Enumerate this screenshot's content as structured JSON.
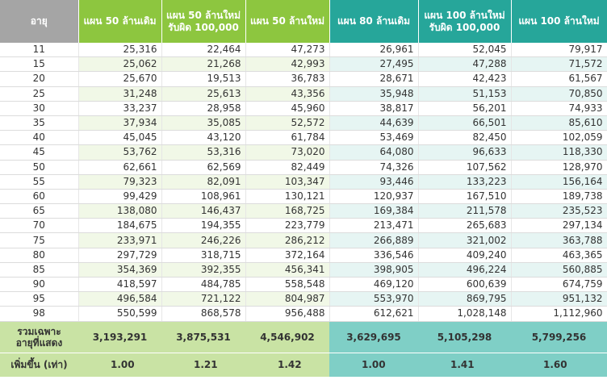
{
  "headers": [
    {
      "lines": [
        "อายุ"
      ]
    },
    {
      "lines": [
        "แผน 50 ล้านเดิม"
      ]
    },
    {
      "lines": [
        "แผน 50 ล้านใหม่",
        "รับผิด 100,000"
      ]
    },
    {
      "lines": [
        "แผน 50 ล้านใหม่"
      ]
    },
    {
      "lines": [
        "แผน 80 ล้านเดิม"
      ]
    },
    {
      "lines": [
        "แผน 100 ล้านใหม่",
        "รับผิด 100,000"
      ]
    },
    {
      "lines": [
        "แผน 100 ล้านใหม่"
      ]
    }
  ],
  "rows": [
    [
      "11",
      "25,316",
      "22,464",
      "47,273",
      "26,961",
      "52,045",
      "79,917"
    ],
    [
      "15",
      "25,062",
      "21,268",
      "42,993",
      "27,495",
      "47,288",
      "71,572"
    ],
    [
      "20",
      "25,670",
      "19,513",
      "36,783",
      "28,671",
      "42,423",
      "61,567"
    ],
    [
      "25",
      "31,248",
      "25,613",
      "43,356",
      "35,948",
      "51,153",
      "70,850"
    ],
    [
      "30",
      "33,237",
      "28,958",
      "45,960",
      "38,817",
      "56,201",
      "74,933"
    ],
    [
      "35",
      "37,934",
      "35,085",
      "52,572",
      "44,639",
      "66,501",
      "85,610"
    ],
    [
      "40",
      "45,045",
      "43,120",
      "61,784",
      "53,469",
      "82,450",
      "102,059"
    ],
    [
      "45",
      "53,762",
      "53,316",
      "73,020",
      "64,080",
      "96,633",
      "118,330"
    ],
    [
      "50",
      "62,661",
      "62,569",
      "82,449",
      "74,326",
      "107,562",
      "128,970"
    ],
    [
      "55",
      "79,323",
      "82,091",
      "103,347",
      "93,446",
      "133,223",
      "156,164"
    ],
    [
      "60",
      "99,429",
      "108,961",
      "130,121",
      "120,937",
      "167,510",
      "189,738"
    ],
    [
      "65",
      "138,080",
      "146,437",
      "168,725",
      "169,384",
      "211,578",
      "235,523"
    ],
    [
      "70",
      "184,675",
      "194,355",
      "223,779",
      "213,471",
      "265,683",
      "297,134"
    ],
    [
      "75",
      "233,971",
      "246,226",
      "286,212",
      "266,889",
      "321,002",
      "363,788"
    ],
    [
      "80",
      "297,729",
      "318,715",
      "372,164",
      "336,546",
      "409,240",
      "463,365"
    ],
    [
      "85",
      "354,369",
      "392,355",
      "456,341",
      "398,905",
      "496,224",
      "560,885"
    ],
    [
      "90",
      "418,597",
      "484,785",
      "558,548",
      "469,120",
      "600,639",
      "674,759"
    ],
    [
      "95",
      "496,584",
      "721,122",
      "804,987",
      "553,970",
      "869,795",
      "951,132"
    ],
    [
      "98",
      "550,599",
      "868,578",
      "956,488",
      "612,621",
      "1,028,148",
      "1,112,960"
    ]
  ],
  "totals": {
    "label_lines": [
      "รวมเฉพาะ",
      "อายุที่แสดง"
    ],
    "values": [
      "3,193,291",
      "3,875,531",
      "4,546,902",
      "3,629,695",
      "5,105,298",
      "5,799,256"
    ]
  },
  "multiplier": {
    "label": "เพิ่มขึ้น (เท่า)",
    "values": [
      "1.00",
      "1.21",
      "1.42",
      "1.00",
      "1.41",
      "1.60"
    ]
  },
  "colors": {
    "age_header": "#a5a5a5",
    "green_header": "#8dc63f",
    "teal_header": "#26a69a",
    "green_footer": "#c9e3a4",
    "teal_footer": "#7fcfc6"
  }
}
